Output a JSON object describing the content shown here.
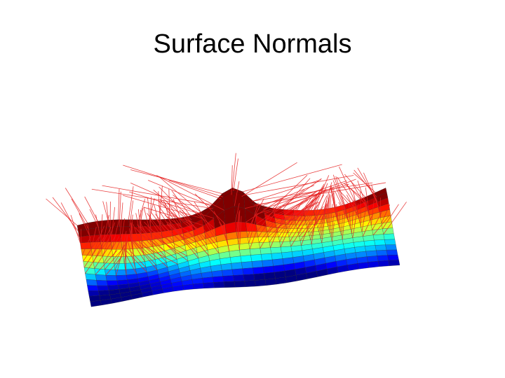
{
  "slide": {
    "title": "Surface Normals"
  }
}
